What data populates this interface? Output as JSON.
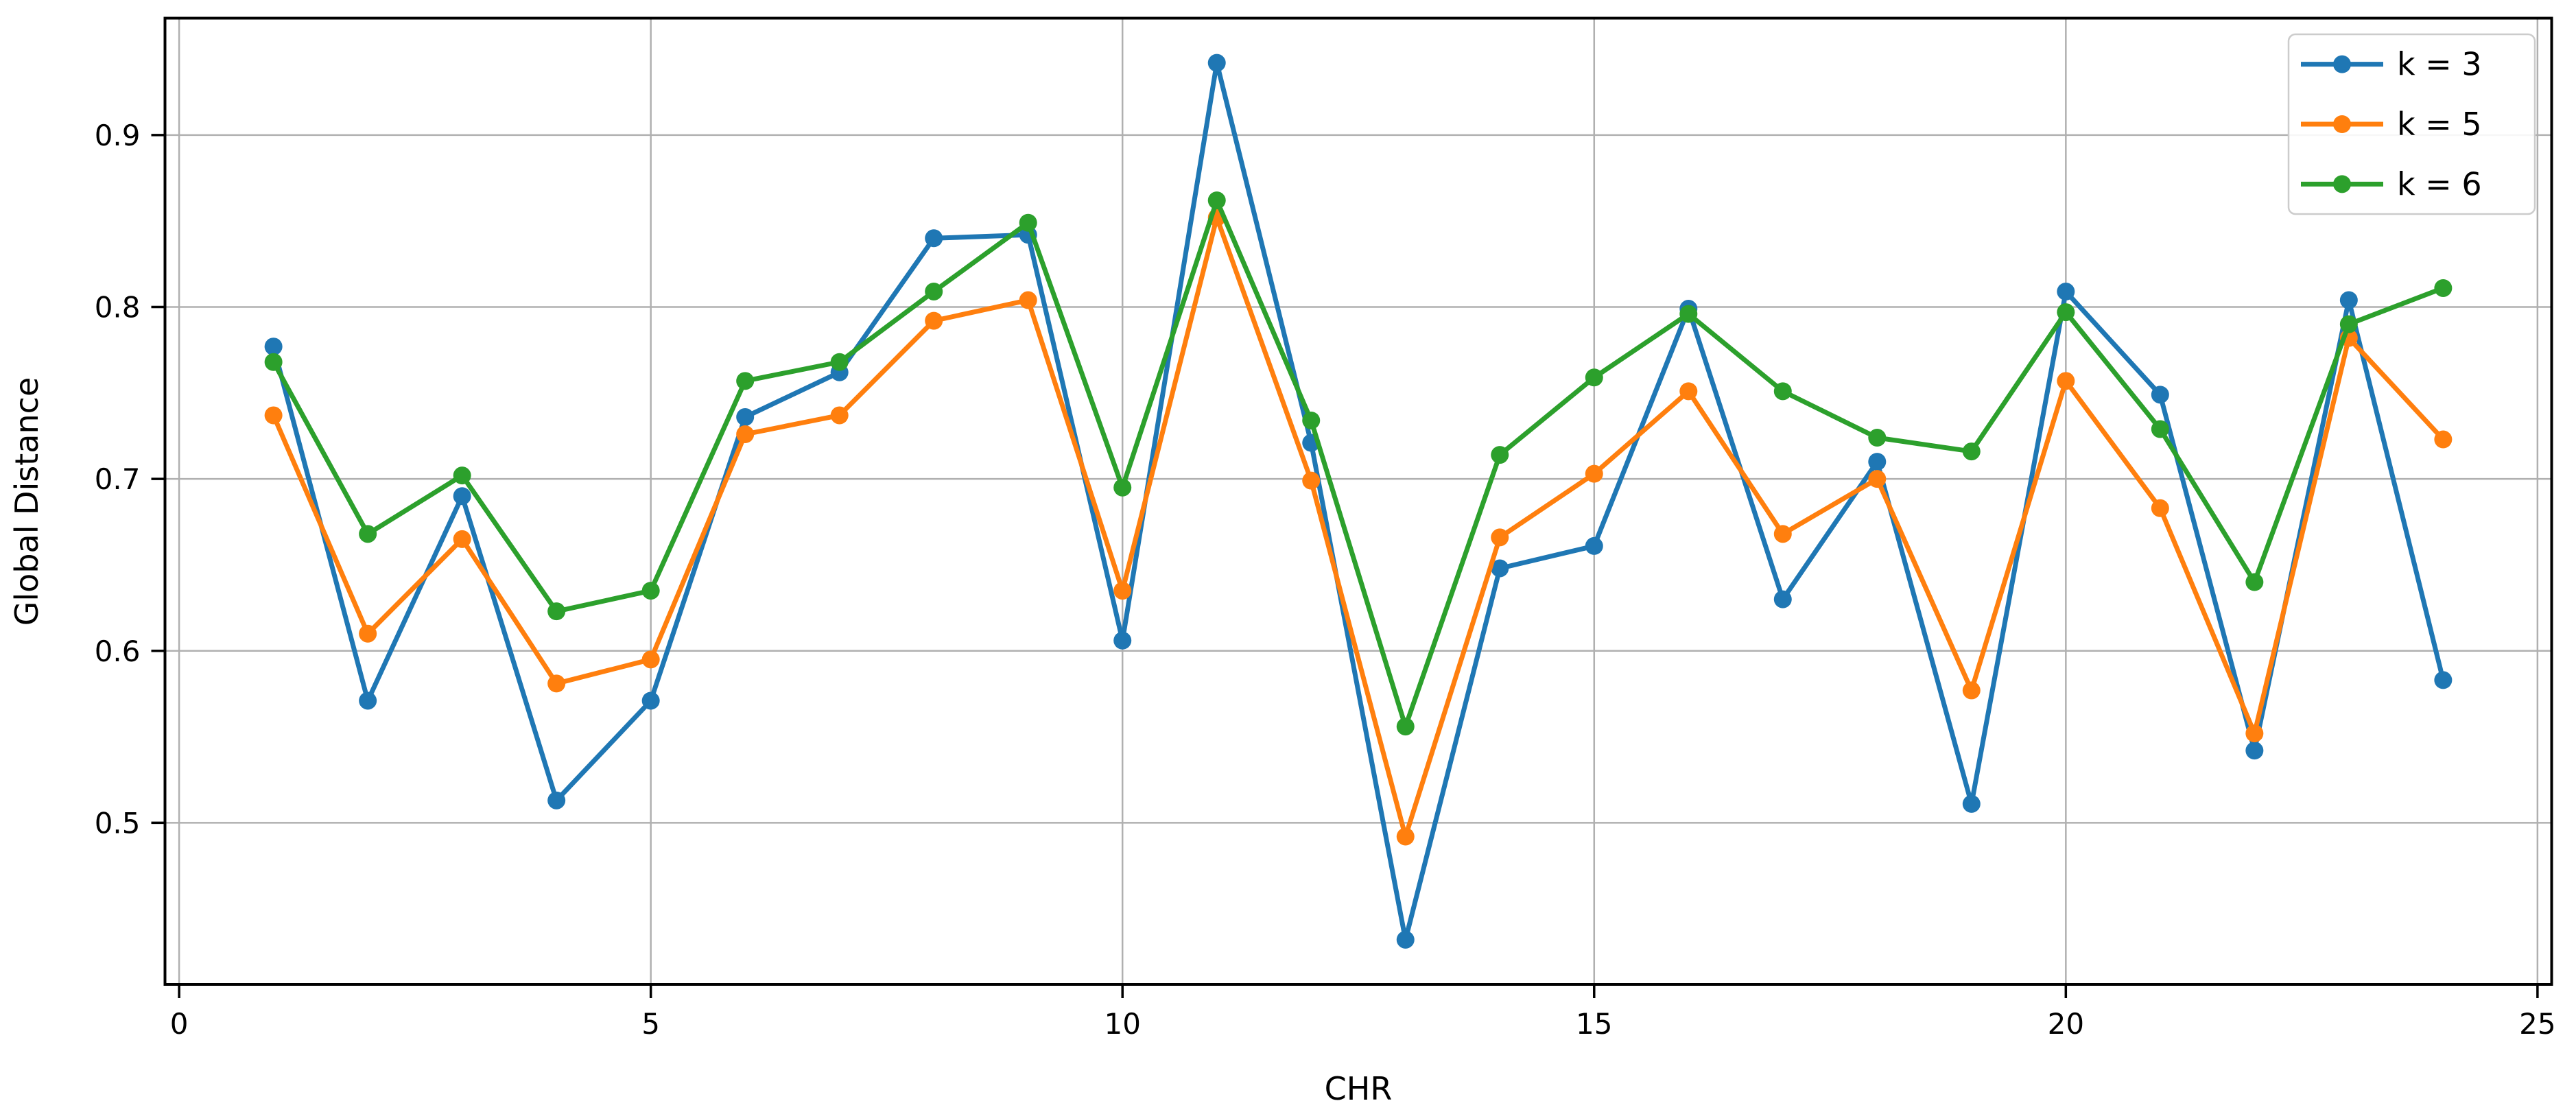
{
  "figure": {
    "xlabel": "CHR",
    "ylabel": "Global Distance",
    "background_color": "#ffffff",
    "frame_color": "#000000",
    "grid_color": "#b0b0b0",
    "tick_color": "#000000"
  },
  "legend": {
    "position": "upper right",
    "entries": [
      {
        "label": "k =  3",
        "color": "#1f77b4",
        "marker": "circle-marker-icon"
      },
      {
        "label": "k = 5",
        "color": "#ff7f0e",
        "marker": "circle-marker-icon"
      },
      {
        "label": "k = 6",
        "color": "#2ca02c",
        "marker": "circle-marker-icon"
      }
    ]
  },
  "chart_data": {
    "type": "line",
    "title": "",
    "xlabel": "CHR",
    "ylabel": "Global Distance",
    "grid": true,
    "legend_position": "upper right",
    "xlim": [
      -0.15,
      25.15
    ],
    "ylim": [
      0.406,
      0.968
    ],
    "xticks": [
      0,
      5,
      10,
      15,
      20,
      25
    ],
    "xtick_labels": [
      "0",
      "5",
      "10",
      "15",
      "20",
      "25"
    ],
    "yticks": [
      0.5,
      0.6,
      0.7,
      0.8,
      0.9
    ],
    "ytick_labels": [
      "0.5",
      "0.6",
      "0.7",
      "0.8",
      "0.9"
    ],
    "x": [
      1,
      2,
      3,
      4,
      5,
      6,
      7,
      8,
      9,
      10,
      11,
      12,
      13,
      14,
      15,
      16,
      17,
      18,
      19,
      20,
      21,
      22,
      23,
      24
    ],
    "series": [
      {
        "name": "k =  3",
        "color": "#1f77b4",
        "values": [
          0.777,
          0.571,
          0.69,
          0.513,
          0.571,
          0.736,
          0.762,
          0.84,
          0.842,
          0.606,
          0.942,
          0.721,
          0.432,
          0.648,
          0.661,
          0.799,
          0.63,
          0.71,
          0.511,
          0.809,
          0.749,
          0.542,
          0.804,
          0.583
        ]
      },
      {
        "name": "k = 5",
        "color": "#ff7f0e",
        "values": [
          0.737,
          0.61,
          0.665,
          0.581,
          0.595,
          0.726,
          0.737,
          0.792,
          0.804,
          0.635,
          0.852,
          0.699,
          0.492,
          0.666,
          0.703,
          0.751,
          0.668,
          0.7,
          0.577,
          0.757,
          0.683,
          0.552,
          0.782,
          0.723
        ]
      },
      {
        "name": "k = 6",
        "color": "#2ca02c",
        "values": [
          0.768,
          0.668,
          0.702,
          0.623,
          0.635,
          0.757,
          0.768,
          0.809,
          0.849,
          0.695,
          0.862,
          0.734,
          0.556,
          0.714,
          0.759,
          0.796,
          0.751,
          0.724,
          0.716,
          0.797,
          0.729,
          0.64,
          0.79,
          0.811
        ]
      }
    ]
  }
}
